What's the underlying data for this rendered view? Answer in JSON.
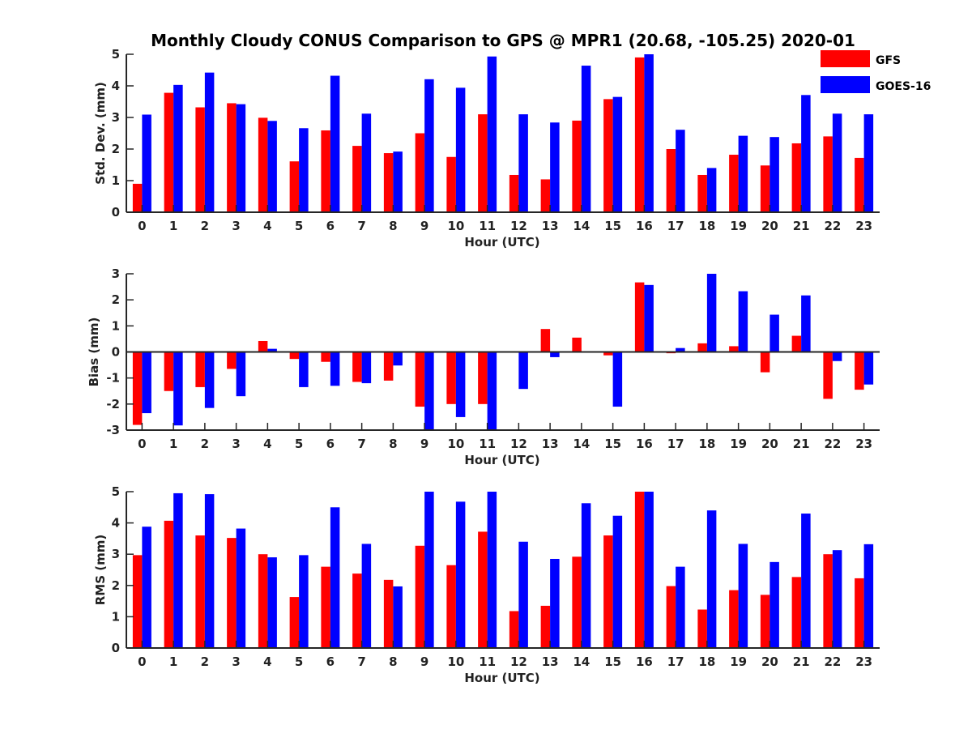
{
  "colors": {
    "gfs": "#ff0000",
    "goes": "#0000ff",
    "axis": "#262626"
  },
  "chart_data": [
    {
      "type": "bar",
      "title": "Monthly Cloudy CONUS Comparison to GPS @ MPR1 (20.68, -105.25) 2020-01",
      "xlabel": "Hour (UTC)",
      "ylabel": "Std. Dev. (mm)",
      "ylim": [
        0,
        5
      ],
      "yticks": [
        0,
        1,
        2,
        3,
        4,
        5
      ],
      "categories": [
        "0",
        "1",
        "2",
        "3",
        "4",
        "5",
        "6",
        "7",
        "8",
        "9",
        "10",
        "11",
        "12",
        "13",
        "14",
        "15",
        "16",
        "17",
        "18",
        "19",
        "20",
        "21",
        "22",
        "23"
      ],
      "legend": "top-right",
      "series": [
        {
          "name": "GFS",
          "color": "#ff0000",
          "values": [
            0.9,
            3.78,
            3.32,
            3.45,
            2.99,
            1.61,
            2.59,
            2.1,
            1.87,
            2.5,
            1.75,
            3.1,
            1.18,
            1.04,
            2.9,
            3.58,
            4.9,
            2.0,
            1.18,
            1.82,
            1.48,
            2.18,
            2.4,
            1.72
          ]
        },
        {
          "name": "GOES-16",
          "color": "#0000ff",
          "values": [
            3.09,
            4.03,
            4.42,
            3.42,
            2.89,
            2.66,
            4.32,
            3.12,
            1.92,
            4.21,
            3.94,
            4.93,
            3.1,
            2.84,
            4.64,
            3.65,
            5.0,
            2.61,
            1.4,
            2.42,
            2.38,
            3.71,
            3.12,
            3.1
          ]
        }
      ]
    },
    {
      "type": "bar",
      "xlabel": "Hour (UTC)",
      "ylabel": "Bias (mm)",
      "ylim": [
        -3,
        3
      ],
      "yticks": [
        -3,
        -2,
        -1,
        0,
        1,
        2,
        3
      ],
      "categories": [
        "0",
        "1",
        "2",
        "3",
        "4",
        "5",
        "6",
        "7",
        "8",
        "9",
        "10",
        "11",
        "12",
        "13",
        "14",
        "15",
        "16",
        "17",
        "18",
        "19",
        "20",
        "21",
        "22",
        "23"
      ],
      "series": [
        {
          "name": "GFS",
          "color": "#ff0000",
          "values": [
            -2.8,
            -1.5,
            -1.35,
            -0.65,
            0.42,
            -0.27,
            -0.38,
            -1.15,
            -1.1,
            -2.1,
            -2.0,
            -2.0,
            0.0,
            0.88,
            0.55,
            -0.13,
            2.67,
            -0.05,
            0.33,
            0.22,
            -0.78,
            0.62,
            -1.8,
            -1.45
          ]
        },
        {
          "name": "GOES-16",
          "color": "#0000ff",
          "values": [
            -2.35,
            -2.82,
            -2.15,
            -1.7,
            0.12,
            -1.35,
            -1.3,
            -1.2,
            -0.52,
            -3.0,
            -2.5,
            -3.0,
            -1.42,
            -0.2,
            0.0,
            -2.1,
            2.57,
            0.15,
            3.0,
            2.33,
            1.43,
            2.17,
            -0.35,
            -1.25
          ]
        }
      ]
    },
    {
      "type": "bar",
      "xlabel": "Hour (UTC)",
      "ylabel": "RMS (mm)",
      "ylim": [
        0,
        5
      ],
      "yticks": [
        0,
        1,
        2,
        3,
        4,
        5
      ],
      "categories": [
        "0",
        "1",
        "2",
        "3",
        "4",
        "5",
        "6",
        "7",
        "8",
        "9",
        "10",
        "11",
        "12",
        "13",
        "14",
        "15",
        "16",
        "17",
        "18",
        "19",
        "20",
        "21",
        "22",
        "23"
      ],
      "series": [
        {
          "name": "GFS",
          "color": "#ff0000",
          "values": [
            2.97,
            4.07,
            3.6,
            3.52,
            3.0,
            1.63,
            2.6,
            2.38,
            2.18,
            3.27,
            2.65,
            3.72,
            1.18,
            1.35,
            2.92,
            3.6,
            5.0,
            1.98,
            1.23,
            1.85,
            1.7,
            2.27,
            3.0,
            2.23
          ]
        },
        {
          "name": "GOES-16",
          "color": "#0000ff",
          "values": [
            3.88,
            4.95,
            4.92,
            3.82,
            2.9,
            2.97,
            4.5,
            3.33,
            1.97,
            5.0,
            4.68,
            5.0,
            3.4,
            2.85,
            4.63,
            4.23,
            5.0,
            2.6,
            4.4,
            3.33,
            2.75,
            4.3,
            3.13,
            3.32
          ]
        }
      ]
    }
  ]
}
